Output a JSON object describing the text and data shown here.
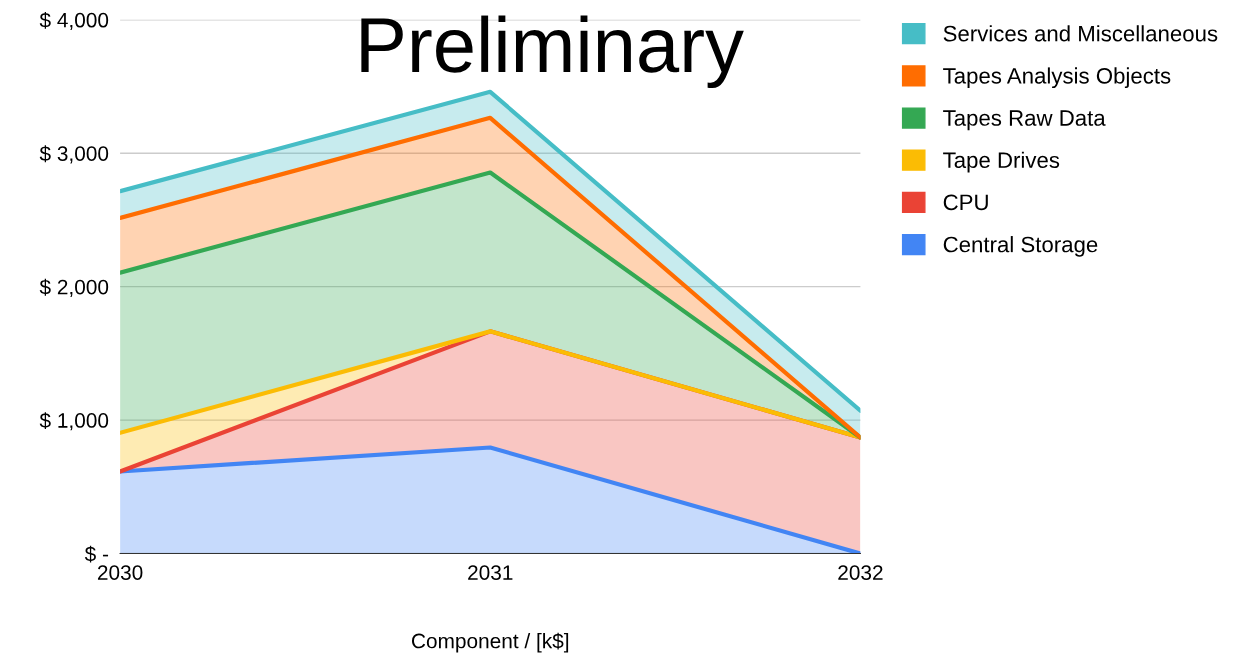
{
  "chart_data": {
    "type": "area",
    "stacked": true,
    "xlabel": "Component / [k$]",
    "categories": [
      "2030",
      "2031",
      "2032"
    ],
    "series": [
      {
        "name": "Central Storage",
        "color": "#4285f4",
        "values": [
          615,
          795,
          0
        ]
      },
      {
        "name": "CPU",
        "color": "#ea4335",
        "values": [
          0,
          870,
          870
        ]
      },
      {
        "name": "Tape Drives",
        "color": "#fbbc04",
        "values": [
          290,
          0,
          0
        ]
      },
      {
        "name": "Tapes Raw Data",
        "color": "#34a853",
        "values": [
          1200,
          1190,
          0
        ]
      },
      {
        "name": "Tapes Analysis Objects",
        "color": "#ff6d01",
        "values": [
          410,
          410,
          0
        ]
      },
      {
        "name": "Services and Miscellaneous",
        "color": "#46bdc6",
        "values": [
          200,
          195,
          200
        ]
      }
    ],
    "ylim": [
      0,
      4000
    ],
    "yticks": [
      {
        "value": 0,
        "label": "$ -"
      },
      {
        "value": 1000,
        "label": "$ 1,000"
      },
      {
        "value": 2000,
        "label": "$ 2,000"
      },
      {
        "value": 3000,
        "label": "$ 3,000"
      },
      {
        "value": 4000,
        "label": "$ 4,000"
      }
    ],
    "grid": "y",
    "legend": "right",
    "annotations": [
      "Preliminary"
    ]
  }
}
